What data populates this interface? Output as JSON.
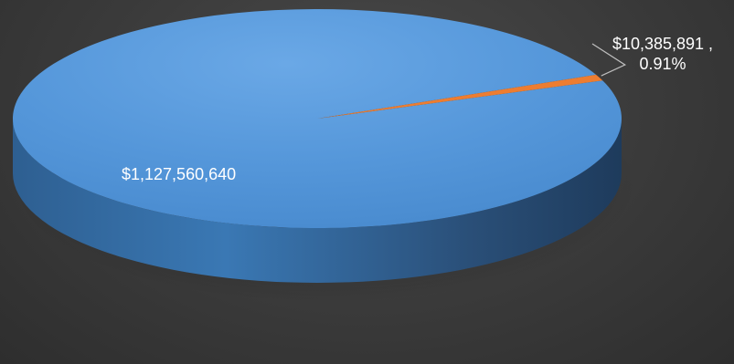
{
  "chart_data": {
    "type": "pie",
    "style": "3d",
    "slices": [
      {
        "value": 1127560640,
        "label": "$1,127,560,640",
        "color": "#5597da"
      },
      {
        "value": 10385891,
        "label": "$10,385,891 ,",
        "percent_label": "0.91%",
        "color": "#ed7d31"
      }
    ],
    "title": "",
    "legend": "none"
  },
  "colors": {
    "background": "#3b3b3b",
    "main_slice": "#5597da",
    "main_slice_side": "#2f5f8f",
    "small_slice": "#ed7d31",
    "label_text": "#ffffff",
    "leader_line": "#bfbfbf"
  }
}
